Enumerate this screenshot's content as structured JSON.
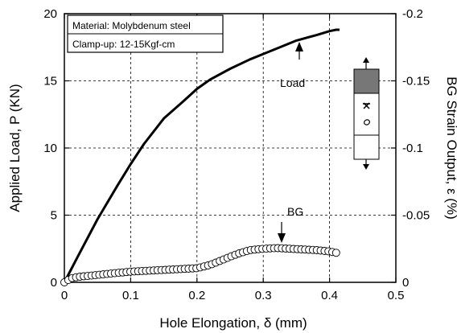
{
  "chart_data": {
    "type": "line",
    "title": "",
    "xlabel": "Hole Elongation, δ (mm)",
    "ylabel": "Applied Load, P (KN)",
    "y2label": "BG Strain Output, ε (%)",
    "xlim": [
      0,
      0.5
    ],
    "ylim": [
      0,
      20
    ],
    "y2lim": [
      0,
      -0.2
    ],
    "x_ticks": [
      "0",
      "0.1",
      "0.2",
      "0.3",
      "0.4",
      "0.5"
    ],
    "y_ticks": [
      "0",
      "5",
      "10",
      "15",
      "20"
    ],
    "y2_ticks": [
      "0",
      "-0.05",
      "-0.1",
      "-0.15",
      "-0.2"
    ],
    "grid": "dashed",
    "legend_box": [
      "Material: Molybdenum steel",
      "Clamp-up: 12-15Kgf-cm"
    ],
    "series": [
      {
        "name": "Load",
        "style": "solid-line",
        "axis": "left",
        "x": [
          0,
          0.02,
          0.05,
          0.08,
          0.1,
          0.12,
          0.15,
          0.18,
          0.2,
          0.22,
          0.25,
          0.28,
          0.3,
          0.33,
          0.35,
          0.38,
          0.4,
          0.41,
          0.415
        ],
        "y": [
          0,
          1.9,
          4.7,
          7.2,
          8.8,
          10.3,
          12.2,
          13.5,
          14.4,
          15.1,
          15.9,
          16.6,
          17.0,
          17.6,
          18.0,
          18.4,
          18.7,
          18.8,
          18.8
        ]
      },
      {
        "name": "BG",
        "style": "open-circles",
        "axis": "right",
        "x": [
          0,
          0.01,
          0.02,
          0.04,
          0.06,
          0.08,
          0.1,
          0.12,
          0.14,
          0.16,
          0.18,
          0.2,
          0.22,
          0.24,
          0.26,
          0.28,
          0.3,
          0.32,
          0.34,
          0.36,
          0.38,
          0.4,
          0.41
        ],
        "y": [
          0,
          -0.003,
          -0.004,
          -0.005,
          -0.006,
          -0.007,
          -0.008,
          -0.0085,
          -0.009,
          -0.0095,
          -0.01,
          -0.0105,
          -0.013,
          -0.017,
          -0.021,
          -0.024,
          -0.025,
          -0.0255,
          -0.025,
          -0.0245,
          -0.024,
          -0.023,
          -0.022
        ]
      }
    ],
    "annotations": [
      {
        "text": "Load",
        "target_x": 0.35,
        "target_y": 18.0
      },
      {
        "text": "BG",
        "target_x": 0.33,
        "target_y": 2.55
      }
    ],
    "inset_symbols": [
      "up-arrow",
      "down-arrow",
      "gauge",
      "circle"
    ]
  }
}
